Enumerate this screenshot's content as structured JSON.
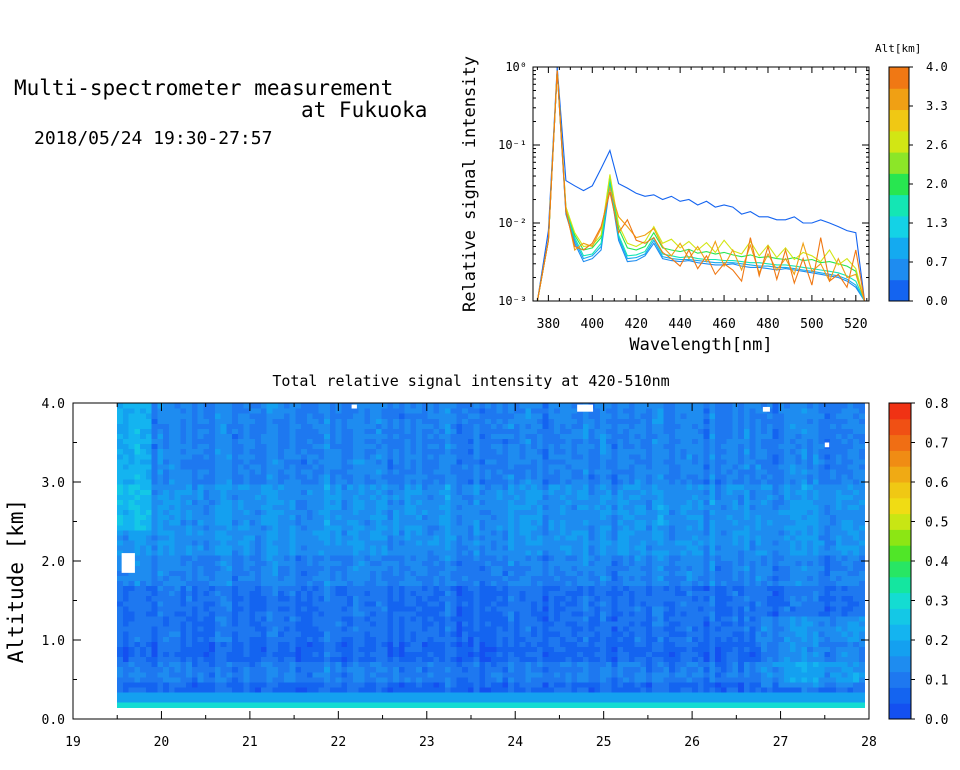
{
  "header": {
    "title_line1": "Multi-spectrometer measurement",
    "title_line2": "at Fukuoka",
    "datetime": "2018/05/24 19:30-27:57"
  },
  "chart_data": [
    {
      "type": "line",
      "xlabel": "Wavelength[nm]",
      "ylabel": "Relative signal intensity",
      "xlim": [
        373,
        526
      ],
      "ylim": [
        0.001,
        1
      ],
      "yscale": "log",
      "x_ticks": [
        380,
        400,
        420,
        440,
        460,
        480,
        500,
        520
      ],
      "y_tick_labels": [
        "10⁻³",
        "10⁻²",
        "10⁻¹",
        "10⁰"
      ],
      "colorbar": {
        "label": "Alt[km]",
        "tick_labels": [
          "0.0",
          "0.7",
          "1.3",
          "2.0",
          "2.6",
          "3.3",
          "4.0"
        ],
        "range": [
          0,
          4
        ],
        "colors": [
          "#1464f0",
          "#1e8cf0",
          "#14aaf0",
          "#14d2e6",
          "#14e6b4",
          "#28e650",
          "#8ce628",
          "#d2e614",
          "#f0c814",
          "#f0a014",
          "#f07814"
        ]
      },
      "x": [
        375,
        380,
        384,
        388,
        392,
        396,
        400,
        404,
        408,
        412,
        416,
        420,
        424,
        428,
        432,
        436,
        440,
        444,
        448,
        452,
        456,
        460,
        464,
        468,
        472,
        476,
        480,
        484,
        488,
        492,
        496,
        500,
        504,
        508,
        512,
        516,
        520,
        524
      ],
      "series": [
        {
          "color": "#1464f0",
          "values": [
            0.001,
            0.008,
            1.0,
            0.035,
            0.03,
            0.026,
            0.03,
            0.05,
            0.085,
            0.032,
            0.028,
            0.024,
            0.022,
            0.023,
            0.02,
            0.022,
            0.019,
            0.02,
            0.017,
            0.019,
            0.016,
            0.017,
            0.016,
            0.013,
            0.014,
            0.012,
            0.012,
            0.011,
            0.011,
            0.012,
            0.01,
            0.01,
            0.011,
            0.01,
            0.009,
            0.008,
            0.0075,
            0.001
          ]
        },
        {
          "color": "#1e8cf0",
          "values": [
            0.001,
            0.006,
            0.9,
            0.013,
            0.0055,
            0.0032,
            0.0035,
            0.0045,
            0.03,
            0.006,
            0.0032,
            0.0033,
            0.0038,
            0.0055,
            0.0035,
            0.0033,
            0.0032,
            0.0033,
            0.0031,
            0.003,
            0.0029,
            0.0029,
            0.003,
            0.0028,
            0.0027,
            0.0027,
            0.0026,
            0.0025,
            0.0026,
            0.0025,
            0.0024,
            0.0023,
            0.0022,
            0.0021,
            0.002,
            0.0018,
            0.0015,
            0.001
          ]
        },
        {
          "color": "#14aaf0",
          "values": [
            0.001,
            0.006,
            0.9,
            0.014,
            0.006,
            0.0035,
            0.0038,
            0.005,
            0.033,
            0.0065,
            0.0035,
            0.0036,
            0.004,
            0.006,
            0.0037,
            0.0035,
            0.0034,
            0.0034,
            0.0033,
            0.0032,
            0.0031,
            0.0031,
            0.0031,
            0.003,
            0.0029,
            0.0028,
            0.0028,
            0.0027,
            0.0027,
            0.0026,
            0.0025,
            0.0024,
            0.0023,
            0.0022,
            0.0021,
            0.0019,
            0.0016,
            0.001
          ]
        },
        {
          "color": "#14e6b4",
          "values": [
            0.001,
            0.006,
            0.9,
            0.015,
            0.0065,
            0.0038,
            0.004,
            0.0055,
            0.036,
            0.007,
            0.0038,
            0.0039,
            0.0043,
            0.0065,
            0.004,
            0.0038,
            0.0036,
            0.0037,
            0.0035,
            0.0034,
            0.0034,
            0.0033,
            0.0033,
            0.0032,
            0.0031,
            0.0031,
            0.003,
            0.0029,
            0.0029,
            0.0028,
            0.0027,
            0.0026,
            0.0025,
            0.0024,
            0.0023,
            0.0021,
            0.0018,
            0.001
          ]
        },
        {
          "color": "#28e650",
          "values": [
            0.001,
            0.006,
            0.9,
            0.016,
            0.007,
            0.0045,
            0.0048,
            0.0065,
            0.04,
            0.0085,
            0.0048,
            0.0045,
            0.005,
            0.0075,
            0.0048,
            0.0045,
            0.0043,
            0.0046,
            0.0041,
            0.0043,
            0.004,
            0.0042,
            0.0039,
            0.0037,
            0.0039,
            0.0036,
            0.0037,
            0.0035,
            0.0034,
            0.0036,
            0.0033,
            0.0034,
            0.0031,
            0.0032,
            0.003,
            0.0028,
            0.0024,
            0.001
          ]
        },
        {
          "color": "#d2e614",
          "values": [
            0.001,
            0.006,
            0.9,
            0.016,
            0.0075,
            0.005,
            0.0052,
            0.007,
            0.042,
            0.0095,
            0.0055,
            0.005,
            0.0058,
            0.009,
            0.0055,
            0.0062,
            0.0048,
            0.0058,
            0.0045,
            0.0056,
            0.0042,
            0.006,
            0.0044,
            0.004,
            0.0058,
            0.0038,
            0.0052,
            0.0036,
            0.0048,
            0.0034,
            0.0042,
            0.0038,
            0.0032,
            0.0045,
            0.0029,
            0.0035,
            0.0026,
            0.001
          ]
        },
        {
          "color": "#f0a014",
          "values": [
            0.001,
            0.006,
            0.9,
            0.015,
            0.0045,
            0.0055,
            0.005,
            0.0085,
            0.028,
            0.012,
            0.009,
            0.0065,
            0.007,
            0.0085,
            0.005,
            0.0038,
            0.0055,
            0.0035,
            0.005,
            0.0032,
            0.0058,
            0.0028,
            0.0045,
            0.0025,
            0.0052,
            0.0023,
            0.004,
            0.0025,
            0.0035,
            0.0022,
            0.0055,
            0.0024,
            0.003,
            0.0018,
            0.0035,
            0.002,
            0.0022,
            0.001
          ]
        },
        {
          "color": "#f07814",
          "values": [
            0.001,
            0.006,
            0.9,
            0.014,
            0.005,
            0.0045,
            0.0055,
            0.009,
            0.025,
            0.0075,
            0.011,
            0.006,
            0.0055,
            0.0065,
            0.0042,
            0.0035,
            0.0028,
            0.0045,
            0.0026,
            0.0038,
            0.0022,
            0.003,
            0.0025,
            0.0018,
            0.0065,
            0.0021,
            0.005,
            0.0019,
            0.0045,
            0.0017,
            0.0035,
            0.0016,
            0.0065,
            0.0018,
            0.0022,
            0.0015,
            0.0045,
            0.001
          ]
        }
      ]
    },
    {
      "type": "heatmap",
      "title": "Total relative signal intensity at 420-510nm",
      "ylabel": "Altitude [km]",
      "xlim": [
        19,
        28
      ],
      "ylim": [
        0,
        4
      ],
      "x_ticks": [
        19,
        20,
        21,
        22,
        23,
        24,
        25,
        26,
        27,
        28
      ],
      "y_tick_labels": [
        "0.0",
        "1.0",
        "2.0",
        "3.0",
        "4.0"
      ],
      "data_x_range": [
        19.5,
        27.95
      ],
      "data_y_range": [
        0.15,
        4.0
      ],
      "colorbar": {
        "tick_labels": [
          "0.0",
          "0.1",
          "0.2",
          "0.3",
          "0.4",
          "0.5",
          "0.6",
          "0.7",
          "0.8"
        ],
        "range": [
          0,
          0.8
        ],
        "colors": [
          "#1450f0",
          "#1464f0",
          "#1e78f0",
          "#1e8cf0",
          "#14a0f0",
          "#14b4f0",
          "#14c8e6",
          "#14dcd2",
          "#14e6a0",
          "#28e664",
          "#50e628",
          "#8ce614",
          "#c8e614",
          "#f0dc14",
          "#f0c814",
          "#f0aa14",
          "#f08c14",
          "#f06e14",
          "#f05014",
          "#f03214"
        ]
      },
      "description_bands": [
        {
          "alt_range": [
            0.15,
            0.2
          ],
          "value": 0.3
        },
        {
          "alt_range": [
            0.2,
            0.35
          ],
          "value": 0.2
        },
        {
          "alt_range": [
            0.35,
            1.7
          ],
          "value": 0.08
        },
        {
          "alt_range": [
            1.7,
            3.0
          ],
          "value": 0.15
        },
        {
          "alt_range": [
            3.0,
            4.0
          ],
          "value": 0.12
        }
      ]
    }
  ]
}
